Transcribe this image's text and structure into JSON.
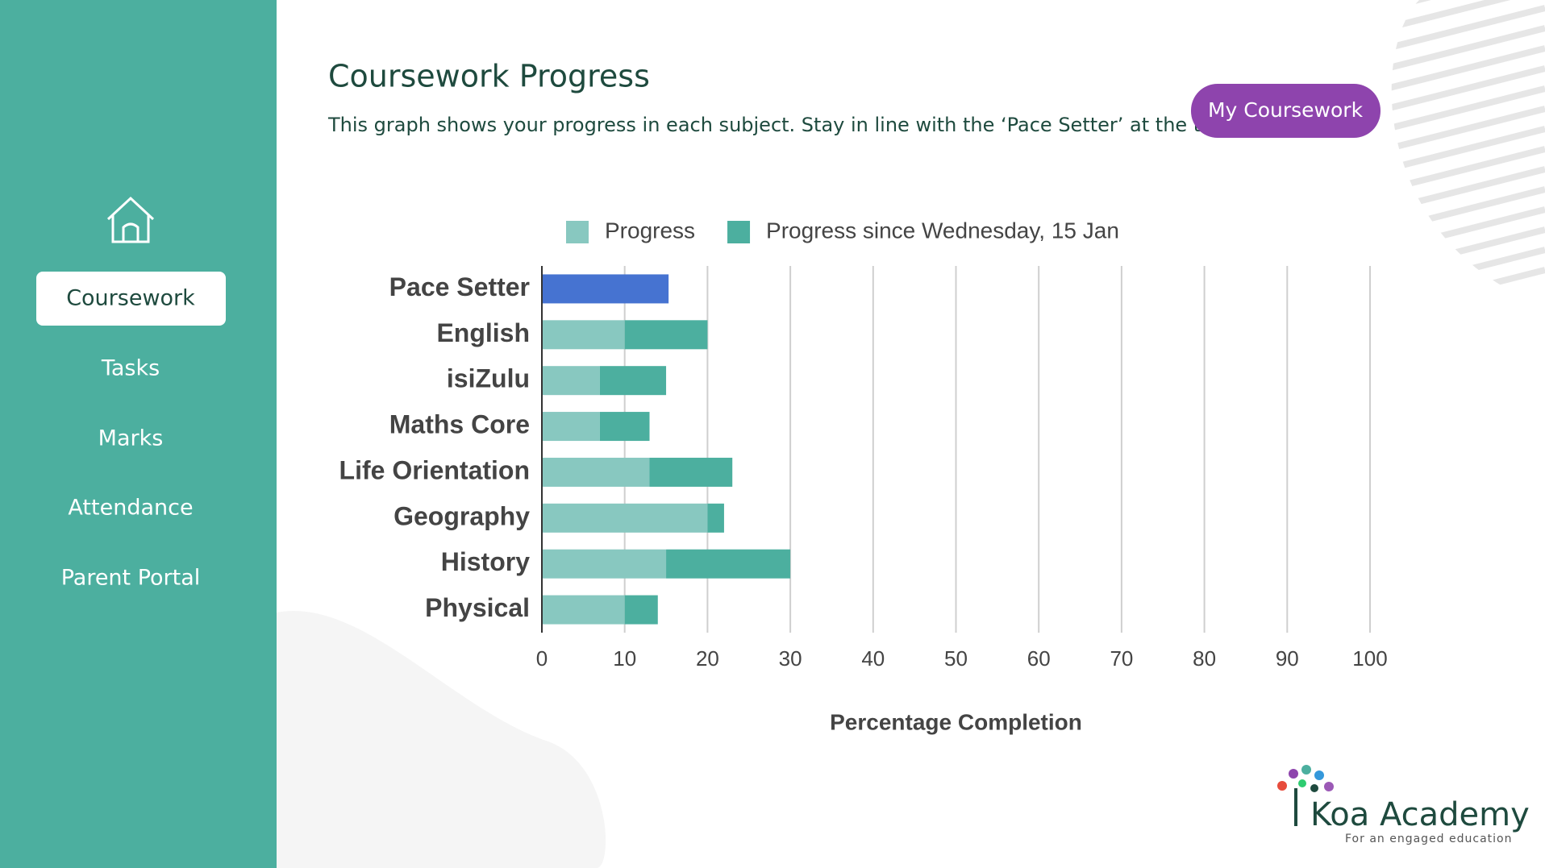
{
  "sidebar": {
    "items": [
      "Coursework",
      "Tasks",
      "Marks",
      "Attendance",
      "Parent Portal"
    ],
    "active": 0
  },
  "header": {
    "title": "Coursework Progress",
    "subtitle": "This graph shows your progress in each subject. Stay in line with the ‘Pace Setter’ at the top.",
    "button": "My Coursework"
  },
  "logo": {
    "name": "Koa Academy",
    "tagline": "For an engaged education"
  },
  "chart_data": {
    "type": "stacked-bar-horizontal",
    "categories": [
      "Pace Setter",
      "English",
      "isiZulu",
      "Maths Core",
      "Life Orientation",
      "Geography",
      "History",
      "Physical"
    ],
    "series": [
      {
        "name": "Progress",
        "color": "#88c8c0",
        "point_colors": [
          "#4673d1",
          null,
          null,
          null,
          null,
          null,
          null,
          null
        ],
        "values": [
          15.3,
          10,
          7,
          7,
          13,
          20,
          15,
          10
        ]
      },
      {
        "name": "Progress since Wednesday, 15 Jan",
        "color": "#4caf9f",
        "values": [
          null,
          10,
          8,
          6,
          10,
          2,
          15,
          4
        ]
      }
    ],
    "xlabel": "Percentage Completion",
    "xlim": [
      0,
      100
    ],
    "xticks": [
      0,
      10,
      20,
      30,
      40,
      50,
      60,
      70,
      80,
      90,
      100
    ],
    "grid": true,
    "legend": "top"
  }
}
